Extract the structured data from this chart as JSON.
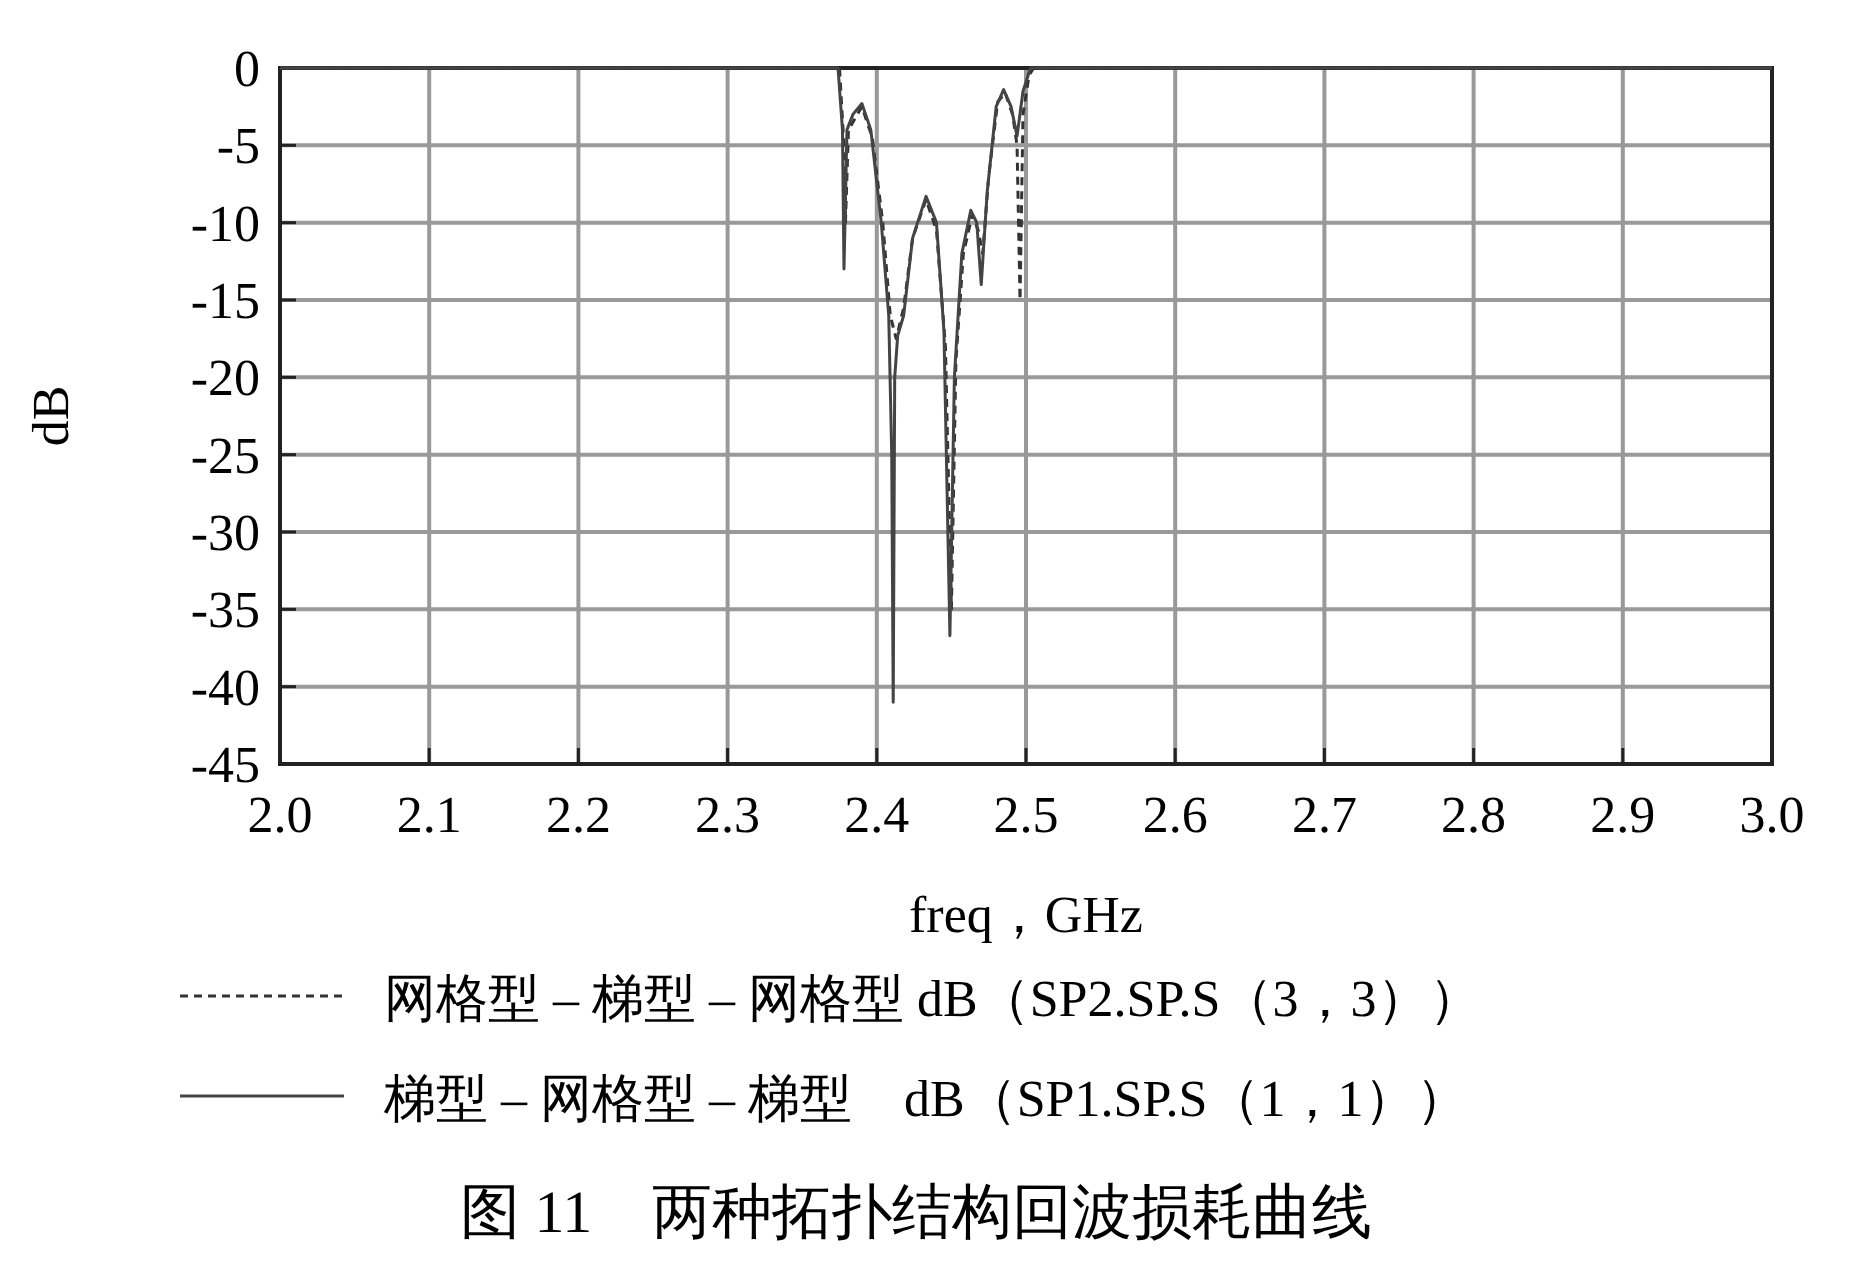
{
  "chart_data": {
    "type": "line",
    "title": "图 11　两种拓扑结构回波损耗曲线",
    "xlabel": "freq，GHz",
    "ylabel": "dB",
    "xlim": [
      2.0,
      3.0
    ],
    "xticks": [
      {
        "value": 2.0,
        "label": "2.0"
      },
      2.1,
      2.2,
      2.3,
      2.4,
      2.5,
      2.6,
      2.7,
      2.8,
      2.9,
      {
        "value": 3.0,
        "label": "3.0"
      }
    ],
    "ylim": [
      -45,
      0
    ],
    "yticks": [
      0,
      -5,
      -10,
      -15,
      -20,
      -25,
      -30,
      -35,
      -40,
      -45
    ],
    "grid": true,
    "legend": "bottom",
    "marker": "none",
    "series": [
      {
        "name": "网格型 – 梯型 – 网格型 dB（SP2.SP.S（3，3））",
        "color": "#333333",
        "line_style": "dashed",
        "x": [
          2.0,
          2.375,
          2.378,
          2.379,
          2.381,
          2.39,
          2.397,
          2.404,
          2.409,
          2.413,
          2.418,
          2.424,
          2.433,
          2.44,
          2.446,
          2.45,
          2.453,
          2.458,
          2.464,
          2.468,
          2.471,
          2.475,
          2.481,
          2.486,
          2.491,
          2.494,
          2.496,
          2.498,
          2.502,
          2.505,
          3.0
        ],
        "values": [
          0,
          0,
          -5,
          -10,
          -4,
          -2.5,
          -4.5,
          -10,
          -16,
          -17.5,
          -15.5,
          -11,
          -8.5,
          -10.5,
          -18,
          -35,
          -19,
          -12,
          -9.5,
          -10.5,
          -12,
          -7,
          -2.2,
          -1.6,
          -3,
          -5,
          -15,
          -3,
          -0.5,
          0,
          0
        ]
      },
      {
        "name": "梯型 – 网格型 – 梯型　dB（SP1.SP.S（1，1））",
        "color": "#444444",
        "line_style": "solid",
        "x": [
          2.0,
          2.374,
          2.377,
          2.378,
          2.38,
          2.384,
          2.39,
          2.396,
          2.403,
          2.408,
          2.41,
          2.411,
          2.412,
          2.414,
          2.418,
          2.424,
          2.433,
          2.44,
          2.445,
          2.449,
          2.452,
          2.457,
          2.463,
          2.467,
          2.47,
          2.474,
          2.48,
          2.485,
          2.49,
          2.494,
          2.498,
          2.503,
          3.0
        ],
        "values": [
          0,
          0,
          -4,
          -13,
          -4,
          -3,
          -2.3,
          -4,
          -10,
          -16,
          -25,
          -41,
          -20,
          -17.3,
          -16,
          -11,
          -8.3,
          -10,
          -17,
          -36.7,
          -20,
          -12,
          -9.2,
          -10,
          -14,
          -8,
          -2.5,
          -1.4,
          -2.5,
          -4.4,
          -1.5,
          0,
          0
        ]
      }
    ]
  }
}
